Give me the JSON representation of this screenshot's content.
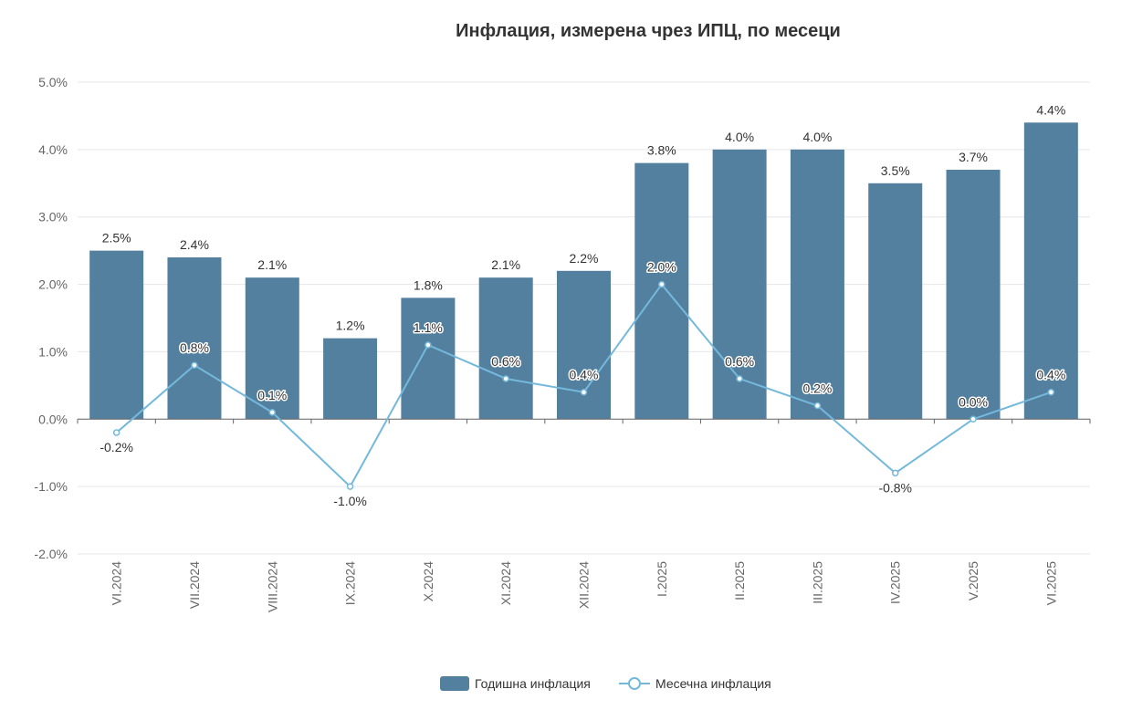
{
  "chart_data": {
    "type": "bar",
    "title": "Инфлация, измерена чрез ИПЦ, по месеци",
    "categories": [
      "VI.2024",
      "VII.2024",
      "VIII.2024",
      "IX.2024",
      "X.2024",
      "XI.2024",
      "XII.2024",
      "I.2025",
      "II.2025",
      "III.2025",
      "IV.2025",
      "V.2025",
      "VI.2025"
    ],
    "y_tick_labels": [
      "5.0%",
      "4.0%",
      "3.0%",
      "2.0%",
      "1.0%",
      "0.0%",
      "-1.0%",
      "-2.0%"
    ],
    "ylim": [
      -2.0,
      5.0
    ],
    "y_unit": "%",
    "grid": true,
    "legend_position": "bottom",
    "series": [
      {
        "name": "Годишна инфлация",
        "type": "bar",
        "color": "#53809f",
        "values": [
          2.5,
          2.4,
          2.1,
          1.2,
          1.8,
          2.1,
          2.2,
          3.8,
          4.0,
          4.0,
          3.5,
          3.7,
          4.4
        ]
      },
      {
        "name": "Месечна инфлация",
        "type": "line",
        "color": "#74b9dc",
        "values": [
          -0.2,
          0.8,
          0.1,
          -1.0,
          1.1,
          0.6,
          0.4,
          2.0,
          0.6,
          0.2,
          -0.8,
          0.0,
          0.4
        ]
      }
    ]
  }
}
